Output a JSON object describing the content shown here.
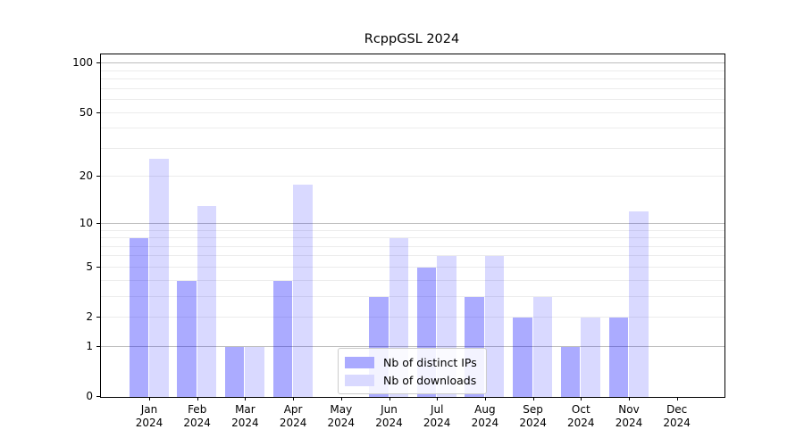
{
  "title": "RcppGSL 2024",
  "colors": {
    "ips_bar": "rgba(0,0,255,0.33)",
    "downloads_bar": "rgba(0,0,255,0.15)",
    "ips_solid": "#aaaaff",
    "downloads_solid": "#d9d9ff",
    "grid_major": "#bdbdbd",
    "grid_minor": "#ececec",
    "axis": "#000000"
  },
  "legend": {
    "items": [
      {
        "label": "Nb of distinct IPs",
        "series": "ips"
      },
      {
        "label": "Nb of downloads",
        "series": "downloads"
      }
    ]
  },
  "y_axis": {
    "ticks": [
      0,
      1,
      2,
      5,
      10,
      20,
      50,
      100
    ],
    "grid_major": [
      1,
      10,
      100
    ],
    "grid_minor": [
      2,
      3,
      4,
      5,
      6,
      7,
      8,
      9,
      20,
      30,
      40,
      50,
      60,
      70,
      80,
      90
    ]
  },
  "x_axis": {
    "labels": [
      {
        "month": "Jan",
        "year": "2024"
      },
      {
        "month": "Feb",
        "year": "2024"
      },
      {
        "month": "Mar",
        "year": "2024"
      },
      {
        "month": "Apr",
        "year": "2024"
      },
      {
        "month": "May",
        "year": "2024"
      },
      {
        "month": "Jun",
        "year": "2024"
      },
      {
        "month": "Jul",
        "year": "2024"
      },
      {
        "month": "Aug",
        "year": "2024"
      },
      {
        "month": "Sep",
        "year": "2024"
      },
      {
        "month": "Oct",
        "year": "2024"
      },
      {
        "month": "Nov",
        "year": "2024"
      },
      {
        "month": "Dec",
        "year": "2024"
      }
    ]
  },
  "chart_data": {
    "type": "bar",
    "title": "RcppGSL 2024",
    "categories": [
      "Jan 2024",
      "Feb 2024",
      "Mar 2024",
      "Apr 2024",
      "May 2024",
      "Jun 2024",
      "Jul 2024",
      "Aug 2024",
      "Sep 2024",
      "Oct 2024",
      "Nov 2024",
      "Dec 2024"
    ],
    "series": [
      {
        "name": "Nb of distinct IPs",
        "values": [
          8,
          4,
          1,
          4,
          0,
          3,
          5,
          3,
          2,
          1,
          2,
          0
        ]
      },
      {
        "name": "Nb of downloads",
        "values": [
          26,
          13,
          1,
          18,
          0,
          8,
          6,
          6,
          3,
          2,
          12,
          0
        ]
      }
    ],
    "xlabel": "",
    "ylabel": "",
    "yscale": "log1p",
    "yticks": [
      0,
      1,
      2,
      5,
      10,
      20,
      50,
      100
    ],
    "ylim": [
      0,
      110
    ],
    "grid": true,
    "legend_position": "lower-center"
  }
}
